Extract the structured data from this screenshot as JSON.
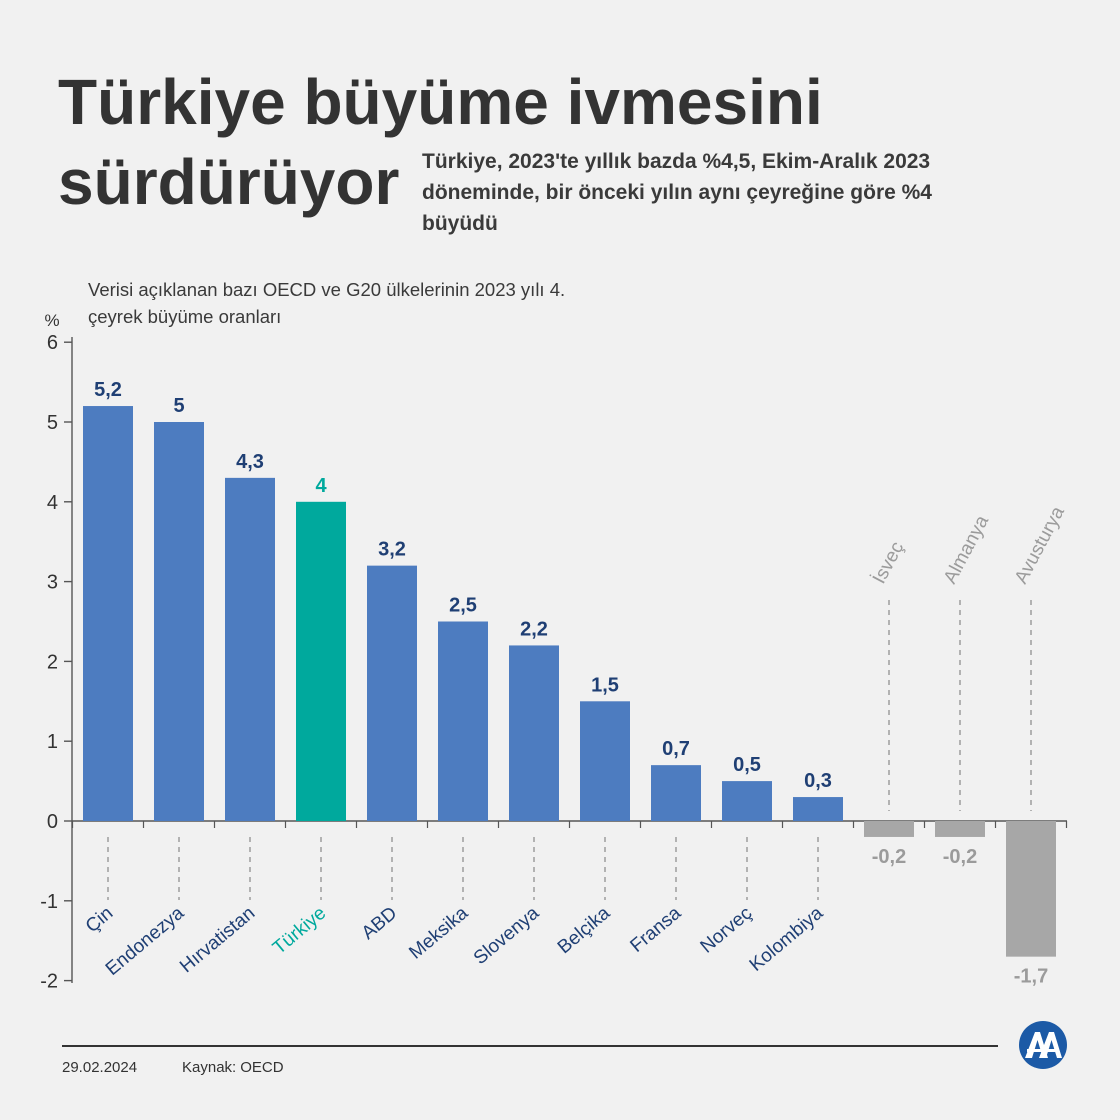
{
  "title_line1": "Türkiye büyüme ivmesini",
  "title_line2": "sürdürüyor",
  "subtitle": "Türkiye, 2023'te yıllık bazda %4,5, Ekim-Aralık 2023 döneminde, bir önceki yılın aynı çeyreğine göre %4 büyüdü",
  "chart_caption": "Verisi açıklanan bazı OECD ve G20 ülkelerinin 2023 yılı 4. çeyrek büyüme oranları",
  "footer": {
    "date": "29.02.2024",
    "source_label": "Kaynak:",
    "source_value": "OECD"
  },
  "logo_text": "AA",
  "colors": {
    "positive": "#4d7cc0",
    "highlight": "#00a99d",
    "negative": "#a7a7a7",
    "label_positive": "#1f3f74",
    "label_negative": "#9b9b9b"
  },
  "chart_data": {
    "type": "bar",
    "title": "Verisi açıklanan bazı OECD ve G20 ülkelerinin 2023 yılı 4. çeyrek büyüme oranları",
    "ylabel": "%",
    "xlabel": "",
    "ylim": [
      -2,
      6
    ],
    "yticks": [
      6,
      5,
      4,
      3,
      2,
      1,
      0,
      -1,
      -2
    ],
    "grid": false,
    "categories": [
      "Çin",
      "Endonezya",
      "Hırvatistan",
      "Türkiye",
      "ABD",
      "Meksika",
      "Slovenya",
      "Belçika",
      "Fransa",
      "Norveç",
      "Kolombiya",
      "İsveç",
      "Almanya",
      "Avusturya"
    ],
    "values": [
      5.2,
      5,
      4.3,
      4,
      3.2,
      2.5,
      2.2,
      1.5,
      0.7,
      0.5,
      0.3,
      -0.2,
      -0.2,
      -1.7
    ],
    "value_labels": [
      "5,2",
      "5",
      "4,3",
      "4",
      "3,2",
      "2,5",
      "2,2",
      "1,5",
      "0,7",
      "0,5",
      "0,3",
      "-0,2",
      "-0,2",
      "-1,7"
    ],
    "highlight": "Türkiye"
  }
}
